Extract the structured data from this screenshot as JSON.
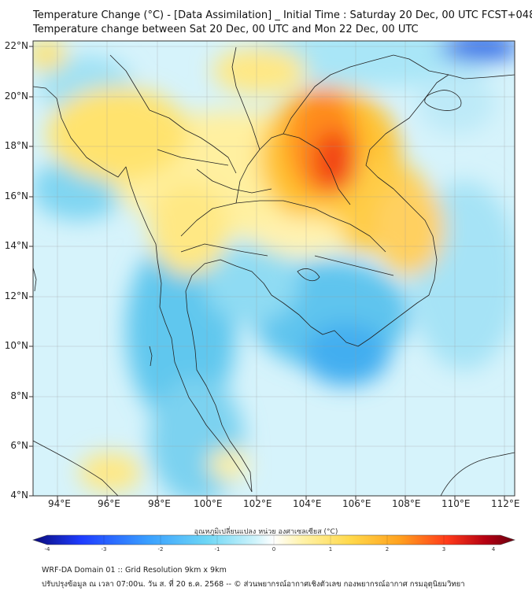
{
  "title": {
    "line1": "Temperature Change (°C) - [Data Assimilation] _ Initial Time : Saturday 20 Dec, 00 UTC FCST+048",
    "line2": "Temperature change between Sat 20 Dec, 00 UTC and Mon 22 Dec, 00 UTC"
  },
  "map": {
    "lat_labels": [
      "22°N",
      "20°N",
      "18°N",
      "16°N",
      "14°N",
      "12°N",
      "10°N",
      "8°N",
      "6°N",
      "4°N"
    ],
    "lon_labels": [
      "94°E",
      "96°E",
      "98°E",
      "100°E",
      "102°E",
      "104°E",
      "106°E",
      "108°E",
      "110°E",
      "112°E"
    ],
    "lat_range": [
      4,
      22.2
    ],
    "lon_range": [
      93.0,
      112.4
    ],
    "gridlines": true
  },
  "colorbar": {
    "title": "อุณหภูมิเปลี่ยนแปลง หน่วย องศาเซลเซียส (°C)",
    "ticks": [
      "-4",
      "-3",
      "-2",
      "-1",
      "0",
      "1",
      "2",
      "3",
      "4"
    ],
    "range": [
      -4,
      4
    ],
    "colors": [
      "#0a0a7a",
      "#1e3cff",
      "#3aa0ff",
      "#6dd6f5",
      "#cdf3fb",
      "#ffffff",
      "#fff2a8",
      "#ffd84a",
      "#ffa21f",
      "#ff3a1a",
      "#b40012",
      "#6a0010"
    ]
  },
  "footer": {
    "line1": "WRF-DA Domain 01 :: Grid Resolution 9km x 9km",
    "line2": "ปรับปรุงข้อมูล ณ เวลา 07:00น. วัน ส. ที่ 20 ธ.ค. 2568 -- © ส่วนพยากรณ์อากาศเชิงตัวเลข กองพยากรณ์อากาศ กรมอุตุนิยมวิทยา"
  }
}
